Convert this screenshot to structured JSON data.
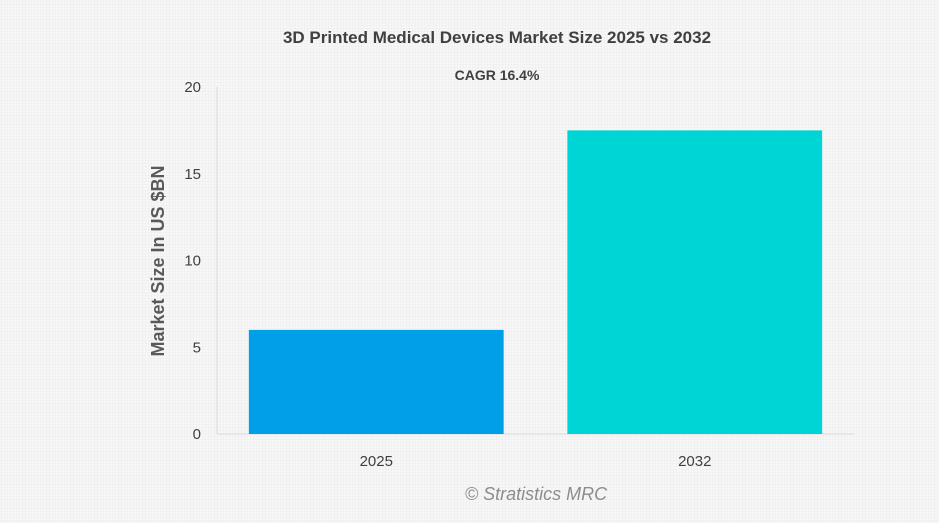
{
  "chart_data": {
    "type": "bar",
    "title": "3D Printed Medical Devices Market Size 2025 vs 2032",
    "subtitle": "CAGR 16.4%",
    "xlabel": "",
    "ylabel": "Market Size In US $BN",
    "categories": [
      "2025",
      "2032"
    ],
    "values": [
      6.0,
      17.5
    ],
    "bar_colors": [
      "#00a0e9",
      "#00d5d5"
    ],
    "ylim": [
      0,
      20
    ],
    "yticks": [
      0,
      5,
      10,
      15,
      20
    ],
    "grid": false,
    "legend": "none"
  },
  "watermark": "© Stratistics MRC"
}
